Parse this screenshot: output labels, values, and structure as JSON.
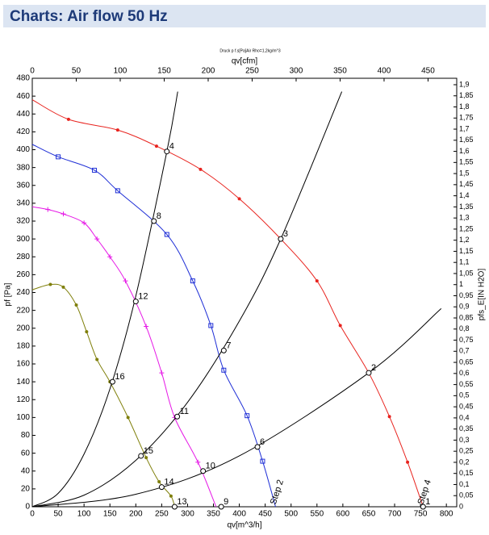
{
  "header": {
    "title": "Charts: Air flow 50 Hz"
  },
  "chart_data": {
    "type": "line",
    "title": "Druck p f.s[Pa]Air Rho=1,2kg/m^3",
    "xlabel": "qv[m^3/h]",
    "x2label": "qv[cfm]",
    "ylabel": "pf [Pa]",
    "y2label": "pfs_E[IN H2O]",
    "xlim": [
      0,
      820
    ],
    "xticks": [
      0,
      50,
      100,
      150,
      200,
      250,
      300,
      350,
      400,
      450,
      500,
      550,
      600,
      650,
      700,
      750,
      800
    ],
    "x2lim": [
      0,
      482.6
    ],
    "x2ticks": [
      0,
      50,
      100,
      150,
      200,
      250,
      300,
      350,
      400,
      450
    ],
    "ylim": [
      0,
      480
    ],
    "yticks": [
      0,
      20,
      40,
      60,
      80,
      100,
      120,
      140,
      160,
      180,
      200,
      220,
      240,
      260,
      280,
      300,
      320,
      340,
      360,
      380,
      400,
      420,
      440,
      460,
      480
    ],
    "y2lim": [
      0,
      1.929
    ],
    "y2ticks": [
      0,
      {
        "value": 0.05,
        "label": "0,05"
      },
      {
        "value": 0.1,
        "label": "0,1"
      },
      {
        "value": 0.15,
        "label": "0,15"
      },
      {
        "value": 0.2,
        "label": "0,2"
      },
      {
        "value": 0.25,
        "label": "0,25"
      },
      {
        "value": 0.3,
        "label": "0,3"
      },
      {
        "value": 0.35,
        "label": "0,35"
      },
      {
        "value": 0.4,
        "label": "0,4"
      },
      {
        "value": 0.45,
        "label": "0,45"
      },
      {
        "value": 0.5,
        "label": "0,5"
      },
      {
        "value": 0.55,
        "label": "0,55"
      },
      {
        "value": 0.6,
        "label": "0,6"
      },
      {
        "value": 0.65,
        "label": "0,65"
      },
      {
        "value": 0.7,
        "label": "0,7"
      },
      {
        "value": 0.75,
        "label": "0,75"
      },
      {
        "value": 0.8,
        "label": "0,8"
      },
      {
        "value": 0.85,
        "label": "0,85"
      },
      {
        "value": 0.9,
        "label": "0,9"
      },
      {
        "value": 0.95,
        "label": "0,95"
      },
      1,
      {
        "value": 1.05,
        "label": "1,05"
      },
      {
        "value": 1.1,
        "label": "1,1"
      },
      {
        "value": 1.15,
        "label": "1,15"
      },
      {
        "value": 1.2,
        "label": "1,2"
      },
      {
        "value": 1.25,
        "label": "1,25"
      },
      {
        "value": 1.3,
        "label": "1,3"
      },
      {
        "value": 1.35,
        "label": "1,35"
      },
      {
        "value": 1.4,
        "label": "1,4"
      },
      {
        "value": 1.45,
        "label": "1,45"
      },
      {
        "value": 1.5,
        "label": "1,5"
      },
      {
        "value": 1.55,
        "label": "1,55"
      },
      {
        "value": 1.6,
        "label": "1,6"
      },
      {
        "value": 1.65,
        "label": "1,65"
      },
      {
        "value": 1.7,
        "label": "1,7"
      },
      {
        "value": 1.75,
        "label": "1,75"
      },
      {
        "value": 1.8,
        "label": "1,8"
      },
      {
        "value": 1.85,
        "label": "1,85"
      },
      {
        "value": 1.9,
        "label": "1,9"
      }
    ],
    "series": [
      {
        "name": "Step 4",
        "color": "#e8231e",
        "marker": "circle",
        "x": [
          0,
          70,
          165,
          240,
          325,
          400,
          480,
          550,
          595,
          650,
          690,
          725,
          755
        ],
        "y": [
          456,
          434,
          422,
          404,
          378,
          345,
          300,
          253,
          203,
          150,
          101,
          50,
          0
        ]
      },
      {
        "name": "Step 2",
        "color": "#1f2fd6",
        "marker": "square",
        "x": [
          0,
          50,
          120,
          165,
          260,
          310,
          345,
          370,
          415,
          445,
          470
        ],
        "y": [
          406,
          392,
          377,
          354,
          305,
          253,
          203,
          153,
          102,
          51,
          0
        ]
      },
      {
        "color": "#e619e6",
        "marker": "plus",
        "x": [
          0,
          30,
          60,
          100,
          125,
          150,
          180,
          220,
          250,
          275,
          320,
          355
        ],
        "y": [
          336,
          333,
          328,
          318,
          300,
          280,
          253,
          202,
          150,
          100,
          50,
          0
        ]
      },
      {
        "color": "#7f7f0a",
        "marker": "dot",
        "x": [
          0,
          35,
          60,
          85,
          105,
          125,
          150,
          185,
          220,
          245,
          268,
          275
        ],
        "y": [
          243,
          249,
          246,
          226,
          196,
          165,
          140,
          100,
          55,
          28,
          12,
          0
        ]
      },
      {
        "color": "#000000",
        "x": [
          0,
          50,
          100,
          150,
          200,
          260,
          281
        ],
        "y": [
          0,
          15,
          59,
          132,
          236,
          398,
          465
        ]
      },
      {
        "color": "#000000",
        "x": [
          0,
          100,
          200,
          300,
          400,
          480,
          598
        ],
        "y": [
          0,
          13,
          52,
          117,
          208,
          300,
          465
        ]
      },
      {
        "color": "#000000",
        "x": [
          0,
          200,
          400,
          650,
          790
        ],
        "y": [
          0,
          14,
          57,
          150,
          222
        ]
      }
    ],
    "points": [
      {
        "label": "1",
        "x": 755,
        "y": 0
      },
      {
        "label": "2",
        "x": 650,
        "y": 150
      },
      {
        "label": "3",
        "x": 480,
        "y": 300
      },
      {
        "label": "4",
        "x": 260,
        "y": 398
      },
      {
        "label": "6",
        "x": 435,
        "y": 67
      },
      {
        "label": "7",
        "x": 370,
        "y": 175
      },
      {
        "label": "8",
        "x": 235,
        "y": 320
      },
      {
        "label": "9",
        "x": 365,
        "y": 0
      },
      {
        "label": "10",
        "x": 330,
        "y": 40
      },
      {
        "label": "11",
        "x": 280,
        "y": 101
      },
      {
        "label": "12",
        "x": 200,
        "y": 230
      },
      {
        "label": "13",
        "x": 275,
        "y": 0
      },
      {
        "label": "14",
        "x": 250,
        "y": 22
      },
      {
        "label": "15",
        "x": 210,
        "y": 57
      },
      {
        "label": "16",
        "x": 155,
        "y": 140
      }
    ]
  }
}
